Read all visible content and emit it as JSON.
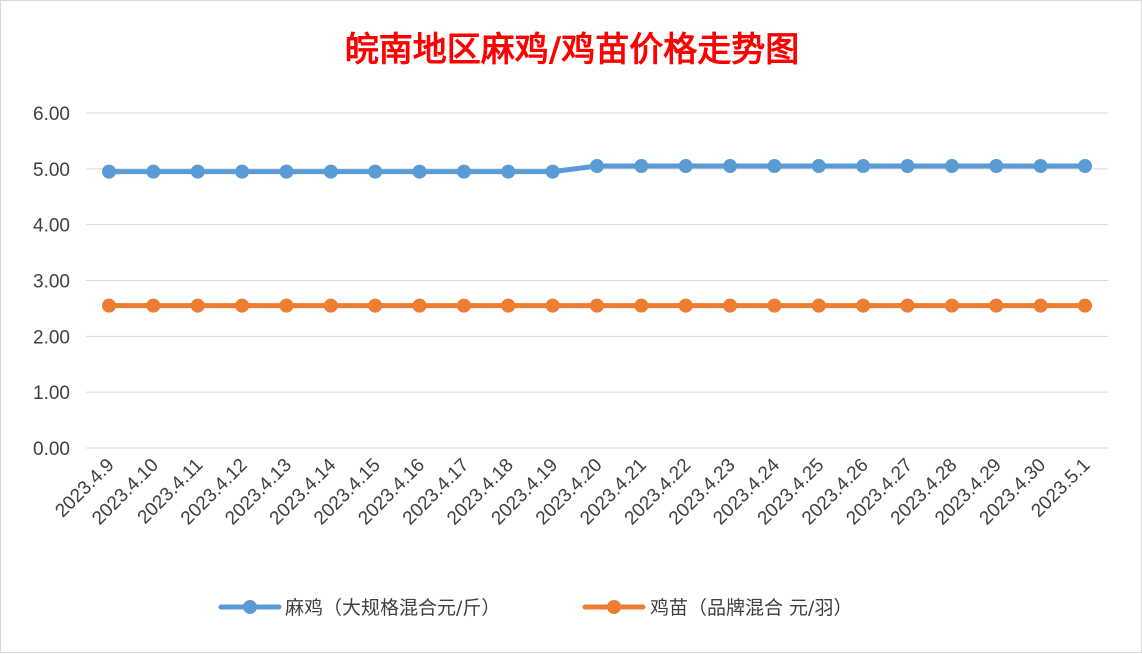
{
  "chart_data": {
    "type": "line",
    "title": "皖南地区麻鸡/鸡苗价格走势图",
    "xlabel": "",
    "ylabel": "",
    "ylim": [
      0,
      6
    ],
    "yticks": [
      "0.00",
      "1.00",
      "2.00",
      "3.00",
      "4.00",
      "5.00",
      "6.00"
    ],
    "grid": true,
    "legend_position": "bottom",
    "categories": [
      "2023.4.9",
      "2023.4.10",
      "2023.4.11",
      "2023.4.12",
      "2023.4.13",
      "2023.4.14",
      "2023.4.15",
      "2023.4.16",
      "2023.4.17",
      "2023.4.18",
      "2023.4.19",
      "2023.4.20",
      "2023.4.21",
      "2023.4.22",
      "2023.4.23",
      "2023.4.24",
      "2023.4.25",
      "2023.4.26",
      "2023.4.27",
      "2023.4.28",
      "2023.4.29",
      "2023.4.30",
      "2023.5.1"
    ],
    "series": [
      {
        "name": "麻鸡（大规格混合元/斤）",
        "color": "#5b9bd5",
        "values": [
          4.95,
          4.95,
          4.95,
          4.95,
          4.95,
          4.95,
          4.95,
          4.95,
          4.95,
          4.95,
          4.95,
          5.05,
          5.05,
          5.05,
          5.05,
          5.05,
          5.05,
          5.05,
          5.05,
          5.05,
          5.05,
          5.05,
          5.05
        ]
      },
      {
        "name": "鸡苗（品牌混合 元/羽）",
        "color": "#ed7d31",
        "values": [
          2.55,
          2.55,
          2.55,
          2.55,
          2.55,
          2.55,
          2.55,
          2.55,
          2.55,
          2.55,
          2.55,
          2.55,
          2.55,
          2.55,
          2.55,
          2.55,
          2.55,
          2.55,
          2.55,
          2.55,
          2.55,
          2.55,
          2.55
        ]
      }
    ],
    "gridline_color": "#d9d9d9"
  }
}
